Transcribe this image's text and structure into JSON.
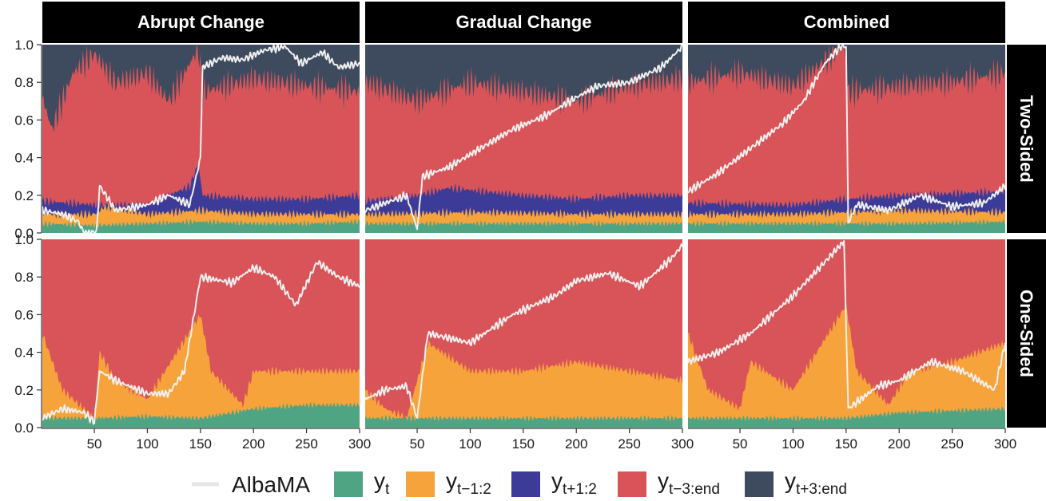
{
  "chart_data": {
    "type": "area",
    "layout": "faceted 2 rows x 3 columns, stacked area shares with overlaid line",
    "columns": [
      "Abrupt Change",
      "Gradual Change",
      "Combined"
    ],
    "rows": [
      "Two-Sided",
      "One-Sided"
    ],
    "x_ticks": [
      "50",
      "100",
      "150",
      "200",
      "250",
      "300"
    ],
    "y_ticks": [
      "0.0",
      "0.2",
      "0.4",
      "0.6",
      "0.8",
      "1.0"
    ],
    "xlim": [
      1,
      300
    ],
    "ylim": [
      0,
      1
    ],
    "legend_position": "bottom",
    "legend": [
      {
        "label": "AlbaMA",
        "base": "AlbaMA",
        "sub": "",
        "kind": "line",
        "color": "#e6e6e6"
      },
      {
        "label": "y_t",
        "base": "y",
        "sub": "t",
        "kind": "area",
        "color": "#4fa483"
      },
      {
        "label": "y_t-1:2",
        "base": "y",
        "sub": "t−1:2",
        "kind": "area",
        "color": "#f6a33b"
      },
      {
        "label": "y_t+1:2",
        "base": "y",
        "sub": "t+1:2",
        "kind": "area",
        "color": "#3c3b98"
      },
      {
        "label": "y_t-3:end",
        "base": "y",
        "sub": "t−3:end",
        "kind": "area",
        "color": "#d95458"
      },
      {
        "label": "y_t+3:end",
        "base": "y",
        "sub": "t+3:end",
        "kind": "area",
        "color": "#3e4a5e"
      }
    ],
    "series_note": "approximate key points (x, share) read from the figure",
    "panels": {
      "abrupt_two": {
        "yt": [
          [
            1,
            0.05
          ],
          [
            50,
            0.04
          ],
          [
            100,
            0.05
          ],
          [
            150,
            0.06
          ],
          [
            200,
            0.05
          ],
          [
            250,
            0.05
          ],
          [
            300,
            0.06
          ]
        ],
        "lag12": [
          [
            1,
            0.1
          ],
          [
            50,
            0.1
          ],
          [
            60,
            0.14
          ],
          [
            100,
            0.1
          ],
          [
            150,
            0.12
          ],
          [
            200,
            0.1
          ],
          [
            250,
            0.1
          ],
          [
            300,
            0.1
          ]
        ],
        "lead12": [
          [
            1,
            0.17
          ],
          [
            50,
            0.15
          ],
          [
            100,
            0.15
          ],
          [
            140,
            0.25
          ],
          [
            148,
            0.37
          ],
          [
            152,
            0.2
          ],
          [
            200,
            0.18
          ],
          [
            250,
            0.18
          ],
          [
            300,
            0.2
          ]
        ],
        "lagend": [
          [
            1,
            0.72
          ],
          [
            10,
            0.55
          ],
          [
            30,
            0.85
          ],
          [
            50,
            0.95
          ],
          [
            70,
            0.8
          ],
          [
            100,
            0.85
          ],
          [
            120,
            0.7
          ],
          [
            148,
            0.98
          ],
          [
            152,
            0.75
          ],
          [
            200,
            0.82
          ],
          [
            250,
            0.78
          ],
          [
            300,
            0.75
          ]
        ],
        "alba": [
          [
            1,
            0.12
          ],
          [
            20,
            0.1
          ],
          [
            35,
            0.06
          ],
          [
            40,
            0
          ],
          [
            52,
            0
          ],
          [
            55,
            0.25
          ],
          [
            70,
            0.12
          ],
          [
            100,
            0.15
          ],
          [
            120,
            0.2
          ],
          [
            140,
            0.15
          ],
          [
            150,
            0.4
          ],
          [
            152,
            0.88
          ],
          [
            170,
            0.93
          ],
          [
            190,
            0.92
          ],
          [
            210,
            0.97
          ],
          [
            230,
            0.99
          ],
          [
            245,
            0.9
          ],
          [
            265,
            0.96
          ],
          [
            280,
            0.88
          ],
          [
            300,
            0.9
          ]
        ]
      },
      "gradual_two": {
        "yt": [
          [
            1,
            0.05
          ],
          [
            100,
            0.05
          ],
          [
            200,
            0.05
          ],
          [
            300,
            0.05
          ]
        ],
        "lag12": [
          [
            1,
            0.1
          ],
          [
            100,
            0.11
          ],
          [
            200,
            0.1
          ],
          [
            300,
            0.1
          ]
        ],
        "lead12": [
          [
            1,
            0.17
          ],
          [
            50,
            0.2
          ],
          [
            80,
            0.24
          ],
          [
            150,
            0.2
          ],
          [
            200,
            0.18
          ],
          [
            250,
            0.2
          ],
          [
            300,
            0.2
          ]
        ],
        "lagend": [
          [
            1,
            0.8
          ],
          [
            50,
            0.7
          ],
          [
            100,
            0.8
          ],
          [
            150,
            0.75
          ],
          [
            200,
            0.7
          ],
          [
            250,
            0.78
          ],
          [
            300,
            0.82
          ]
        ],
        "alba": [
          [
            1,
            0.12
          ],
          [
            40,
            0.2
          ],
          [
            50,
            0.02
          ],
          [
            55,
            0.3
          ],
          [
            80,
            0.35
          ],
          [
            110,
            0.45
          ],
          [
            140,
            0.55
          ],
          [
            170,
            0.62
          ],
          [
            200,
            0.72
          ],
          [
            220,
            0.78
          ],
          [
            250,
            0.8
          ],
          [
            280,
            0.88
          ],
          [
            300,
            0.99
          ]
        ]
      },
      "combined_two": {
        "yt": [
          [
            1,
            0.05
          ],
          [
            100,
            0.05
          ],
          [
            150,
            0.05
          ],
          [
            200,
            0.05
          ],
          [
            300,
            0.06
          ]
        ],
        "lag12": [
          [
            1,
            0.1
          ],
          [
            100,
            0.1
          ],
          [
            150,
            0.11
          ],
          [
            200,
            0.12
          ],
          [
            300,
            0.11
          ]
        ],
        "lead12": [
          [
            1,
            0.16
          ],
          [
            100,
            0.15
          ],
          [
            150,
            0.18
          ],
          [
            200,
            0.2
          ],
          [
            300,
            0.22
          ]
        ],
        "lagend": [
          [
            1,
            0.8
          ],
          [
            50,
            0.85
          ],
          [
            100,
            0.78
          ],
          [
            148,
            0.99
          ],
          [
            152,
            0.75
          ],
          [
            200,
            0.78
          ],
          [
            250,
            0.8
          ],
          [
            300,
            0.85
          ]
        ],
        "alba": [
          [
            1,
            0.22
          ],
          [
            30,
            0.32
          ],
          [
            60,
            0.45
          ],
          [
            90,
            0.58
          ],
          [
            110,
            0.7
          ],
          [
            130,
            0.9
          ],
          [
            145,
            0.99
          ],
          [
            150,
            0.99
          ],
          [
            152,
            0.05
          ],
          [
            160,
            0.15
          ],
          [
            190,
            0.12
          ],
          [
            220,
            0.2
          ],
          [
            250,
            0.14
          ],
          [
            280,
            0.16
          ],
          [
            300,
            0.25
          ]
        ]
      },
      "abrupt_one": {
        "yt": [
          [
            1,
            0.05
          ],
          [
            50,
            0.05
          ],
          [
            100,
            0.06
          ],
          [
            150,
            0.05
          ],
          [
            200,
            0.1
          ],
          [
            250,
            0.12
          ],
          [
            300,
            0.12
          ]
        ],
        "lag12": [
          [
            1,
            0.5
          ],
          [
            20,
            0.2
          ],
          [
            40,
            0.1
          ],
          [
            50,
            0.05
          ],
          [
            55,
            0.4
          ],
          [
            70,
            0.25
          ],
          [
            100,
            0.15
          ],
          [
            150,
            0.6
          ],
          [
            160,
            0.3
          ],
          [
            190,
            0.12
          ],
          [
            200,
            0.3
          ],
          [
            250,
            0.3
          ],
          [
            300,
            0.3
          ]
        ],
        "alba": [
          [
            1,
            0.05
          ],
          [
            20,
            0.1
          ],
          [
            40,
            0.08
          ],
          [
            50,
            0.03
          ],
          [
            55,
            0.3
          ],
          [
            70,
            0.25
          ],
          [
            100,
            0.18
          ],
          [
            120,
            0.18
          ],
          [
            135,
            0.3
          ],
          [
            150,
            0.8
          ],
          [
            180,
            0.77
          ],
          [
            200,
            0.85
          ],
          [
            220,
            0.8
          ],
          [
            240,
            0.65
          ],
          [
            260,
            0.88
          ],
          [
            280,
            0.8
          ],
          [
            300,
            0.75
          ]
        ]
      },
      "gradual_one": {
        "yt": [
          [
            1,
            0.05
          ],
          [
            100,
            0.05
          ],
          [
            200,
            0.05
          ],
          [
            300,
            0.05
          ]
        ],
        "lag12": [
          [
            1,
            0.2
          ],
          [
            20,
            0.1
          ],
          [
            40,
            0.05
          ],
          [
            60,
            0.45
          ],
          [
            100,
            0.3
          ],
          [
            150,
            0.3
          ],
          [
            200,
            0.35
          ],
          [
            250,
            0.3
          ],
          [
            300,
            0.25
          ]
        ],
        "alba": [
          [
            1,
            0.15
          ],
          [
            20,
            0.2
          ],
          [
            40,
            0.22
          ],
          [
            50,
            0.05
          ],
          [
            60,
            0.5
          ],
          [
            100,
            0.45
          ],
          [
            140,
            0.6
          ],
          [
            180,
            0.7
          ],
          [
            200,
            0.78
          ],
          [
            230,
            0.82
          ],
          [
            260,
            0.75
          ],
          [
            290,
            0.9
          ],
          [
            300,
            0.97
          ]
        ]
      },
      "combined_one": {
        "yt": [
          [
            1,
            0.05
          ],
          [
            100,
            0.05
          ],
          [
            150,
            0.05
          ],
          [
            200,
            0.08
          ],
          [
            300,
            0.1
          ]
        ],
        "lag12": [
          [
            1,
            0.5
          ],
          [
            20,
            0.2
          ],
          [
            50,
            0.1
          ],
          [
            60,
            0.35
          ],
          [
            100,
            0.2
          ],
          [
            150,
            0.65
          ],
          [
            160,
            0.3
          ],
          [
            190,
            0.12
          ],
          [
            210,
            0.3
          ],
          [
            250,
            0.35
          ],
          [
            300,
            0.45
          ]
        ],
        "alba": [
          [
            1,
            0.35
          ],
          [
            30,
            0.4
          ],
          [
            60,
            0.5
          ],
          [
            80,
            0.6
          ],
          [
            100,
            0.7
          ],
          [
            130,
            0.88
          ],
          [
            148,
            0.99
          ],
          [
            152,
            0.1
          ],
          [
            180,
            0.22
          ],
          [
            200,
            0.25
          ],
          [
            230,
            0.35
          ],
          [
            260,
            0.3
          ],
          [
            290,
            0.2
          ],
          [
            300,
            0.45
          ]
        ]
      }
    }
  }
}
